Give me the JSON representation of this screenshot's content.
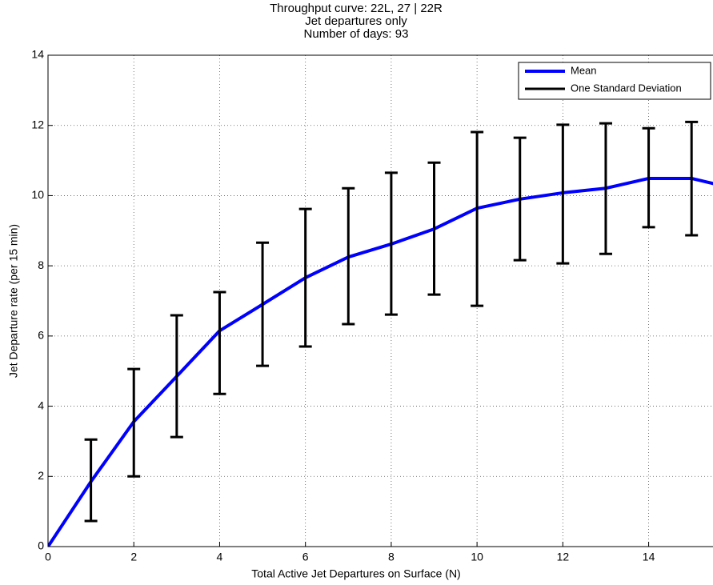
{
  "chart_data": {
    "type": "line",
    "title": [
      "Throughput curve: 22L, 27 | 22R",
      "Jet departures only",
      "Number of days: 93"
    ],
    "x_label": "Total Active Jet Departures on Surface (N)",
    "y_label": "Jet Departure rate (per 15 min)",
    "xlim": [
      0,
      15.5
    ],
    "ylim": [
      0,
      14
    ],
    "xticks": [
      0,
      2,
      4,
      6,
      8,
      10,
      12,
      14
    ],
    "yticks": [
      0,
      2,
      4,
      6,
      8,
      10,
      12,
      14
    ],
    "grid": true,
    "legend": "upper right",
    "series": [
      {
        "name": "Mean",
        "color": "#0000ff",
        "x": [
          0,
          1,
          2,
          3,
          4,
          5,
          6,
          7,
          8,
          9,
          10,
          11,
          12,
          13,
          14,
          15,
          16
        ],
        "values": [
          0,
          1.85,
          3.56,
          4.85,
          6.15,
          6.9,
          7.66,
          8.25,
          8.62,
          9.05,
          9.64,
          9.9,
          10.08,
          10.21,
          10.49,
          10.49,
          10.2
        ]
      },
      {
        "name": "One Standard Deviation",
        "color": "#000000",
        "x": [
          1,
          2,
          3,
          4,
          5,
          6,
          7,
          8,
          9,
          10,
          11,
          12,
          13,
          14,
          15
        ],
        "lower": [
          0.73,
          2.0,
          3.12,
          4.35,
          5.15,
          5.7,
          6.34,
          6.61,
          7.18,
          6.86,
          8.16,
          8.07,
          8.34,
          9.1,
          8.87
        ],
        "upper": [
          3.05,
          5.06,
          6.59,
          7.25,
          8.66,
          9.62,
          10.21,
          10.65,
          10.94,
          11.81,
          11.65,
          12.02,
          12.06,
          11.92,
          12.1
        ]
      }
    ]
  }
}
